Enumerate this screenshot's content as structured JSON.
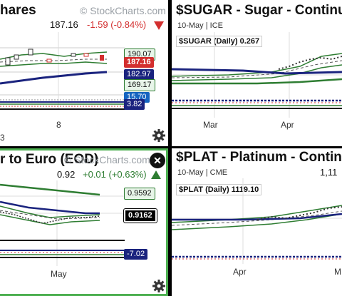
{
  "watermark": "© StockCharts.com",
  "panels": {
    "tl": {
      "title": "hares",
      "price": "187.16",
      "change": "-1.59 (-0.84%)",
      "tags": [
        "190.07",
        "187.16",
        "182.97",
        "169.17",
        "15.70",
        "3.82"
      ],
      "xlabels": [
        "8",
        "3"
      ]
    },
    "tr": {
      "title": "$SUGAR - Sugar - Continuous C",
      "sub": "10-May | ICE",
      "symbol_label": "$SUGAR (Daily) 0.267",
      "xlabels": [
        "Mar",
        "Apr"
      ]
    },
    "bl": {
      "title": "r to Euro (EOD)",
      "price": "0.92",
      "change": "+0.01 (+0.63%)",
      "tags": [
        "0.9592",
        "0.9162",
        "-7.02"
      ],
      "xlabels": [
        "May"
      ]
    },
    "br": {
      "title": "$PLAT - Platinum - Continuous C",
      "sub": "10-May | CME",
      "price": "1,11",
      "symbol_label": "$PLAT (Daily) 1119.10",
      "xlabels": [
        "Apr",
        "M"
      ]
    }
  },
  "colors": {
    "down": "#d32f2f",
    "up": "#2e7d32",
    "accent_border": "#4caf50",
    "ma_blue": "#1a237e",
    "ma_green": "#2e7d32"
  }
}
